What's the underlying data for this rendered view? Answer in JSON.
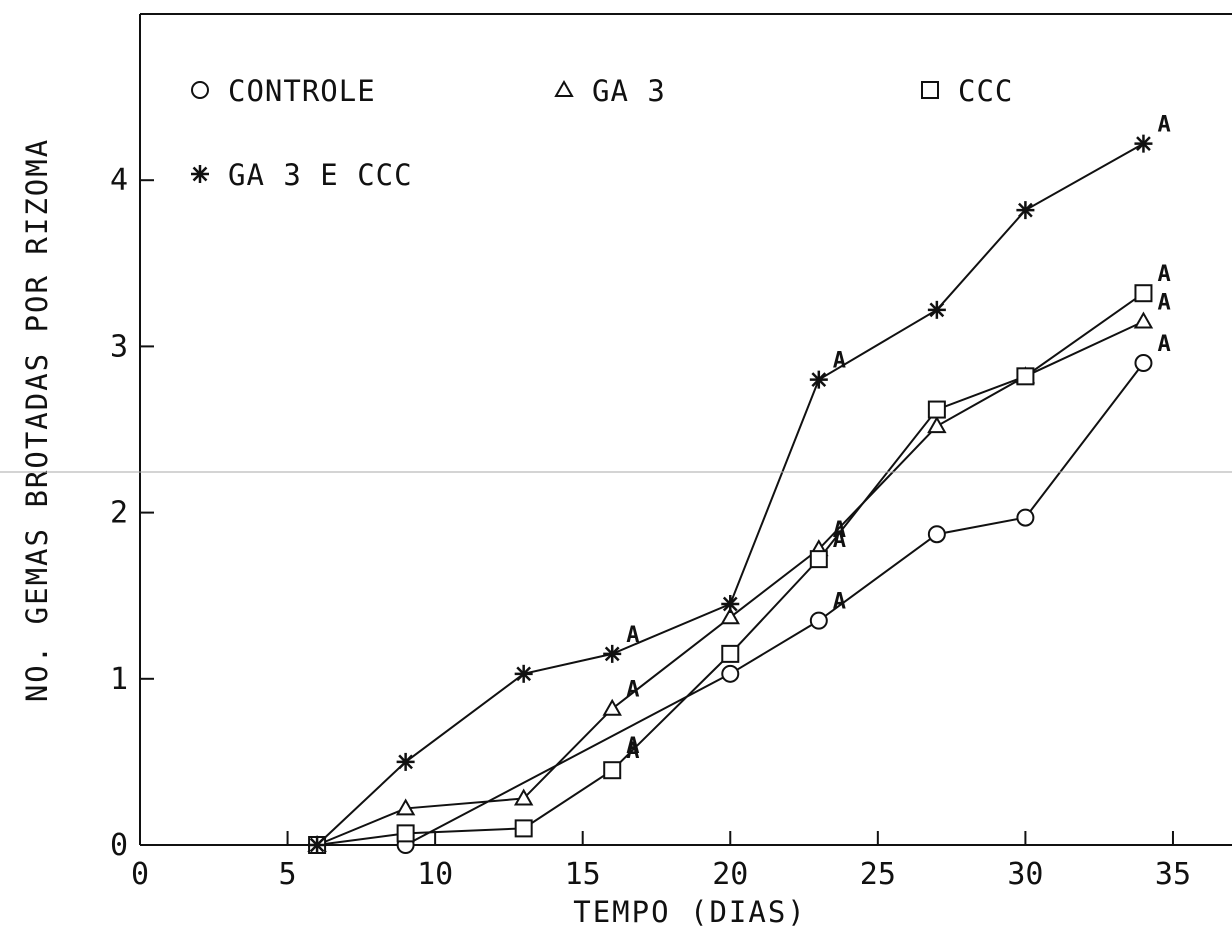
{
  "chart_data": {
    "type": "line",
    "title": "",
    "xlabel": "TEMPO (DIAS)",
    "ylabel": "NO. GEMAS BROTADAS POR RIZOMA",
    "xlim": [
      0,
      37
    ],
    "ylim": [
      0,
      5
    ],
    "xticks": [
      "0",
      "5",
      "10",
      "15",
      "20",
      "25",
      "30",
      "35"
    ],
    "yticks": [
      "0",
      "1",
      "2",
      "3",
      "4"
    ],
    "grid": false,
    "legend_placement": "top-left",
    "series": [
      {
        "name": "CONTROLE",
        "marker": "circle",
        "x": [
          6,
          9,
          20,
          23,
          27,
          30,
          34
        ],
        "y": [
          0,
          0,
          1.03,
          1.35,
          1.87,
          1.97,
          2.9
        ]
      },
      {
        "name": "GA 3",
        "marker": "triangle",
        "x": [
          6,
          9,
          13,
          16,
          20,
          23,
          27,
          30,
          34
        ],
        "y": [
          0,
          0.22,
          0.28,
          0.82,
          1.37,
          1.78,
          2.52,
          2.82,
          3.15
        ]
      },
      {
        "name": "CCC",
        "marker": "square",
        "x": [
          6,
          9,
          13,
          16,
          20,
          23,
          27,
          30,
          34
        ],
        "y": [
          0,
          0.07,
          0.1,
          0.45,
          1.15,
          1.72,
          2.62,
          2.82,
          3.32
        ]
      },
      {
        "name": "GA 3 E CCC",
        "marker": "asterisk",
        "x": [
          6,
          9,
          13,
          16,
          20,
          23,
          27,
          30,
          34
        ],
        "y": [
          0,
          0.5,
          1.03,
          1.15,
          1.45,
          2.8,
          3.22,
          3.82,
          4.22
        ]
      }
    ],
    "annotations": [
      {
        "text": "A",
        "x": 16,
        "y": 1.15,
        "series": "GA 3 E CCC"
      },
      {
        "text": "A",
        "x": 16,
        "y": 0.82,
        "series": "GA 3"
      },
      {
        "text": "A",
        "x": 16,
        "y": 0.48,
        "series": "GA 3"
      },
      {
        "text": "A",
        "x": 16,
        "y": 0.45,
        "series": "CCC"
      },
      {
        "text": "A",
        "x": 23,
        "y": 2.8,
        "series": "GA 3 E CCC"
      },
      {
        "text": "A",
        "x": 23,
        "y": 1.78,
        "series": "GA 3"
      },
      {
        "text": "A",
        "x": 23,
        "y": 1.72,
        "series": "CCC"
      },
      {
        "text": "A",
        "x": 23,
        "y": 1.35,
        "series": "CONTROLE"
      },
      {
        "text": "A",
        "x": 34,
        "y": 4.22,
        "series": "GA 3 E CCC"
      },
      {
        "text": "A",
        "x": 34,
        "y": 3.32,
        "series": "CCC"
      },
      {
        "text": "A",
        "x": 34,
        "y": 3.15,
        "series": "GA 3"
      },
      {
        "text": "A",
        "x": 34,
        "y": 2.9,
        "series": "CONTROLE"
      }
    ]
  }
}
